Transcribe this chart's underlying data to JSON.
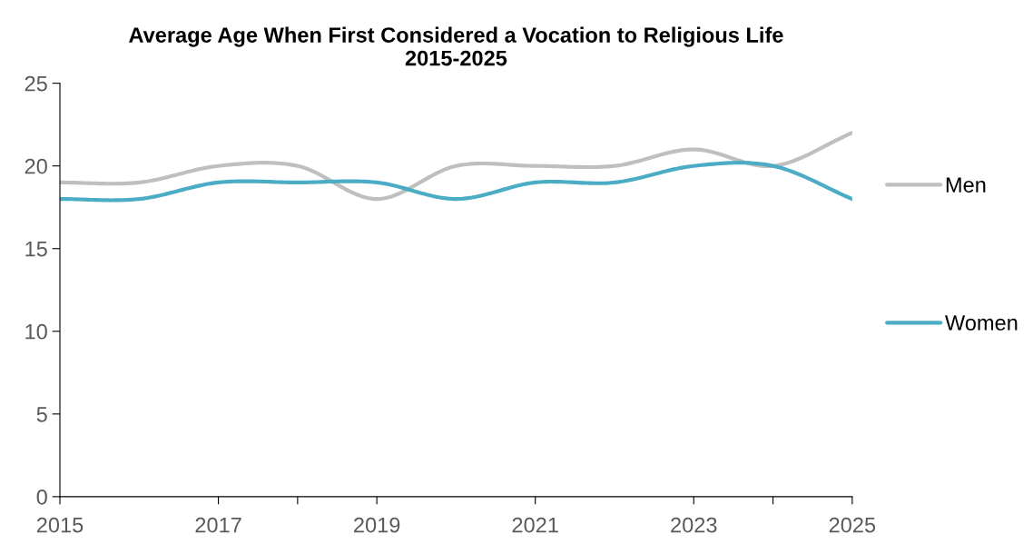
{
  "chart_data": {
    "type": "line",
    "title": "Average Age When First Considered a Vocation to Religious Life\n2015-2025",
    "x": [
      2015,
      2016,
      2017,
      2018,
      2019,
      2020,
      2021,
      2022,
      2023,
      2024,
      2025
    ],
    "series": [
      {
        "name": "Men",
        "color": "#bfbfbf",
        "values": [
          19,
          19,
          20,
          20,
          18,
          20,
          20,
          20,
          21,
          20,
          22
        ]
      },
      {
        "name": "Women",
        "color": "#4bacc6",
        "values": [
          18,
          18,
          19,
          19,
          19,
          18,
          19,
          19,
          20,
          20,
          18
        ]
      }
    ],
    "xlim": [
      2015,
      2025
    ],
    "xticks": [
      2015,
      2017,
      {
        "value": 2018,
        "label": null
      },
      2019,
      2021,
      2023,
      {
        "value": 2024,
        "label": null
      },
      2025
    ],
    "ylim": [
      0,
      25
    ],
    "yticks": [
      0,
      5,
      10,
      15,
      20,
      25
    ],
    "grid": false,
    "legend": "right",
    "marker": "none",
    "line_style": "solid"
  }
}
